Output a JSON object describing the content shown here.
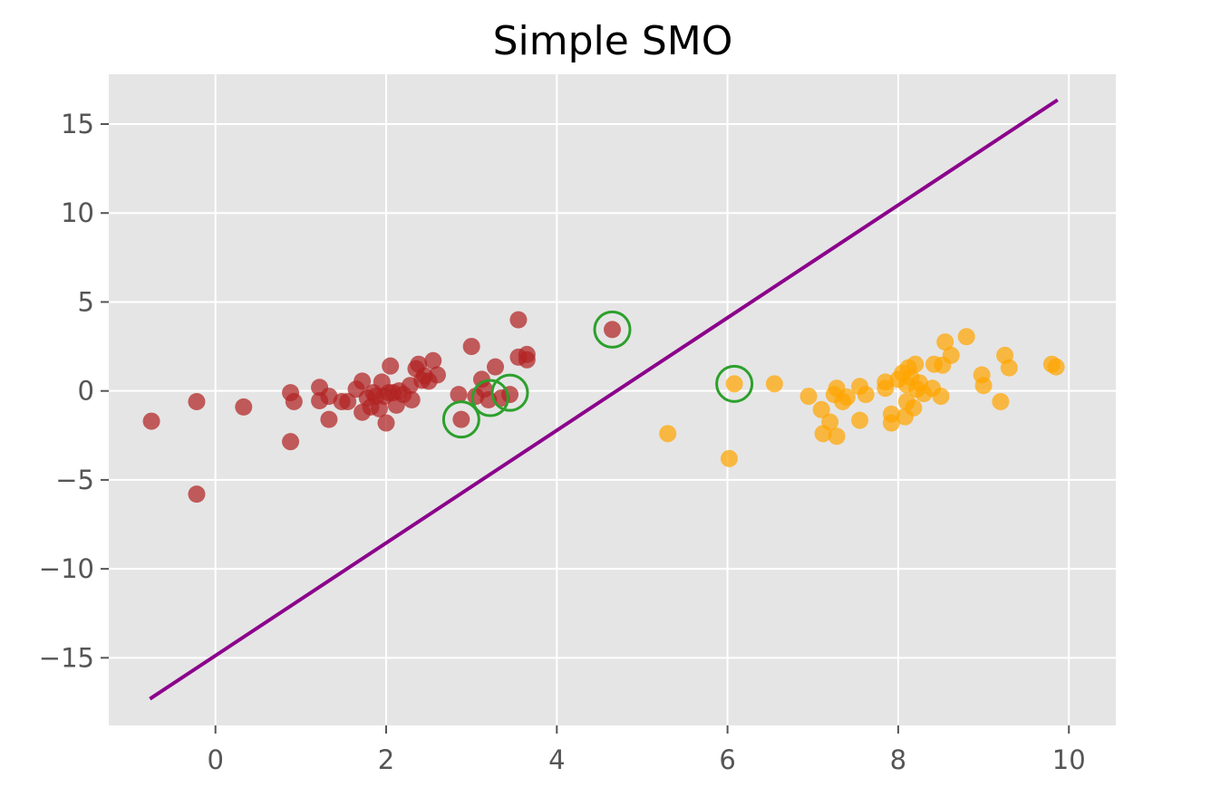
{
  "chart_data": {
    "type": "scatter",
    "title": "Simple SMO",
    "xlabel": "",
    "ylabel": "",
    "xlim": [
      -1.25,
      10.55
    ],
    "ylim": [
      -18.8,
      17.8
    ],
    "x_ticks": [
      0,
      2,
      4,
      6,
      8,
      10
    ],
    "x_tick_labels": [
      "0",
      "2",
      "4",
      "6",
      "8",
      "10"
    ],
    "y_ticks": [
      15,
      10,
      5,
      0,
      -5,
      -10,
      -15
    ],
    "y_tick_labels": [
      "15",
      "10",
      "5",
      "0",
      "−5",
      "−10",
      "−15"
    ],
    "grid": true,
    "legend": "none",
    "colors": {
      "background": "#e5e5e5",
      "grid": "#ffffff",
      "class_negative": "#b22222",
      "class_positive": "#ffa500",
      "support_vectors": "#2ca02c",
      "decision_boundary": "#8b008b"
    },
    "series": [
      {
        "kind": "points",
        "color": "#b22222",
        "points": [
          [
            -0.75,
            -1.7
          ],
          [
            -0.22,
            -0.6
          ],
          [
            -0.22,
            -5.8
          ],
          [
            0.33,
            -0.9
          ],
          [
            0.88,
            -0.1
          ],
          [
            0.92,
            -0.6
          ],
          [
            0.88,
            -2.85
          ],
          [
            1.22,
            0.2
          ],
          [
            1.22,
            -0.55
          ],
          [
            1.33,
            -0.3
          ],
          [
            1.33,
            -1.6
          ],
          [
            1.48,
            -0.6
          ],
          [
            1.55,
            -0.6
          ],
          [
            1.65,
            0.1
          ],
          [
            1.72,
            0.55
          ],
          [
            1.72,
            -1.2
          ],
          [
            1.78,
            -0.4
          ],
          [
            1.82,
            -0.9
          ],
          [
            1.85,
            -0.1
          ],
          [
            1.88,
            -0.3
          ],
          [
            1.92,
            -1.0
          ],
          [
            1.95,
            0.5
          ],
          [
            1.98,
            -0.3
          ],
          [
            2.0,
            -1.8
          ],
          [
            2.03,
            -0.1
          ],
          [
            2.05,
            1.4
          ],
          [
            2.08,
            -0.1
          ],
          [
            2.12,
            -0.8
          ],
          [
            2.15,
            0.0
          ],
          [
            2.2,
            -0.2
          ],
          [
            2.28,
            0.3
          ],
          [
            2.3,
            -0.5
          ],
          [
            2.35,
            1.25
          ],
          [
            2.38,
            1.5
          ],
          [
            2.42,
            0.6
          ],
          [
            2.45,
            0.85
          ],
          [
            2.5,
            0.55
          ],
          [
            2.55,
            1.7
          ],
          [
            2.6,
            0.9
          ],
          [
            2.85,
            -0.2
          ],
          [
            2.88,
            -1.6
          ],
          [
            3.0,
            2.5
          ],
          [
            3.05,
            -0.3
          ],
          [
            3.12,
            0.65
          ],
          [
            3.15,
            0.1
          ],
          [
            3.2,
            -0.5
          ],
          [
            3.28,
            1.35
          ],
          [
            3.35,
            -0.4
          ],
          [
            3.45,
            -0.2
          ],
          [
            3.55,
            4.0
          ],
          [
            3.55,
            1.9
          ],
          [
            3.65,
            2.05
          ],
          [
            3.65,
            1.75
          ],
          [
            4.65,
            3.45
          ]
        ]
      },
      {
        "kind": "points",
        "color": "#ffa500",
        "points": [
          [
            5.3,
            -2.4
          ],
          [
            6.02,
            -3.8
          ],
          [
            6.08,
            0.4
          ],
          [
            6.55,
            0.4
          ],
          [
            6.95,
            -0.3
          ],
          [
            7.1,
            -1.05
          ],
          [
            7.12,
            -2.4
          ],
          [
            7.2,
            -1.75
          ],
          [
            7.25,
            -0.2
          ],
          [
            7.28,
            -2.55
          ],
          [
            7.28,
            0.15
          ],
          [
            7.35,
            -0.6
          ],
          [
            7.4,
            -0.35
          ],
          [
            7.55,
            0.25
          ],
          [
            7.55,
            -1.65
          ],
          [
            7.62,
            -0.2
          ],
          [
            7.85,
            0.5
          ],
          [
            7.85,
            0.15
          ],
          [
            7.92,
            -1.3
          ],
          [
            7.92,
            -1.8
          ],
          [
            8.0,
            0.65
          ],
          [
            8.05,
            1.0
          ],
          [
            8.08,
            -1.45
          ],
          [
            8.1,
            0.35
          ],
          [
            8.1,
            -0.6
          ],
          [
            8.12,
            1.3
          ],
          [
            8.15,
            0.75
          ],
          [
            8.18,
            -0.95
          ],
          [
            8.2,
            1.5
          ],
          [
            8.22,
            0.1
          ],
          [
            8.25,
            0.45
          ],
          [
            8.3,
            -0.15
          ],
          [
            8.4,
            0.15
          ],
          [
            8.42,
            1.5
          ],
          [
            8.5,
            -0.3
          ],
          [
            8.52,
            1.45
          ],
          [
            8.55,
            2.75
          ],
          [
            8.62,
            2.0
          ],
          [
            8.8,
            3.05
          ],
          [
            8.98,
            0.9
          ],
          [
            9.0,
            0.3
          ],
          [
            9.2,
            -0.6
          ],
          [
            9.25,
            2.0
          ],
          [
            9.3,
            1.3
          ],
          [
            9.8,
            1.5
          ],
          [
            9.85,
            1.35
          ]
        ]
      },
      {
        "kind": "circles",
        "color": "#2ca02c",
        "points": [
          [
            2.88,
            -1.6
          ],
          [
            3.22,
            -0.4
          ],
          [
            3.45,
            -0.1
          ],
          [
            4.65,
            3.45
          ],
          [
            6.08,
            0.4
          ]
        ]
      },
      {
        "kind": "line",
        "color": "#8b008b",
        "points": [
          [
            -0.75,
            -17.25
          ],
          [
            9.85,
            16.3
          ]
        ]
      }
    ]
  }
}
